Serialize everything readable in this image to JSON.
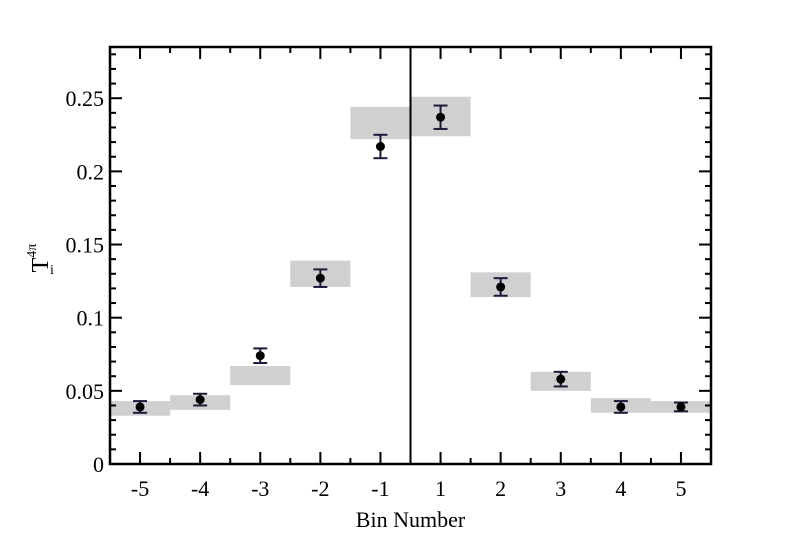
{
  "chart_data": {
    "type": "scatter",
    "title": "",
    "xlabel": "Bin Number",
    "ylabel": "T",
    "ylabel_superscript": "4π",
    "ylabel_subscript": "i",
    "categories": [
      "-5",
      "-4",
      "-3",
      "-2",
      "-1",
      "1",
      "2",
      "3",
      "4",
      "5"
    ],
    "ylim": [
      0,
      0.285
    ],
    "yticks": [
      "0",
      "0.05",
      "0.1",
      "0.15",
      "0.2",
      "0.25"
    ],
    "grid": false,
    "divider_between": [
      "-1",
      "1"
    ],
    "points": [
      {
        "x": "-5",
        "y": 0.039,
        "err": 0.004
      },
      {
        "x": "-4",
        "y": 0.044,
        "err": 0.004
      },
      {
        "x": "-3",
        "y": 0.074,
        "err": 0.005
      },
      {
        "x": "-2",
        "y": 0.127,
        "err": 0.006
      },
      {
        "x": "-1",
        "y": 0.217,
        "err": 0.008
      },
      {
        "x": "1",
        "y": 0.237,
        "err": 0.008
      },
      {
        "x": "2",
        "y": 0.121,
        "err": 0.006
      },
      {
        "x": "3",
        "y": 0.058,
        "err": 0.005
      },
      {
        "x": "4",
        "y": 0.039,
        "err": 0.004
      },
      {
        "x": "5",
        "y": 0.039,
        "err": 0.003
      }
    ],
    "bands": [
      {
        "x": "-5",
        "low": 0.033,
        "high": 0.043
      },
      {
        "x": "-4",
        "low": 0.037,
        "high": 0.047
      },
      {
        "x": "-3",
        "low": 0.054,
        "high": 0.067
      },
      {
        "x": "-2",
        "low": 0.121,
        "high": 0.139
      },
      {
        "x": "-1",
        "low": 0.222,
        "high": 0.244
      },
      {
        "x": "1",
        "low": 0.224,
        "high": 0.251
      },
      {
        "x": "2",
        "low": 0.114,
        "high": 0.131
      },
      {
        "x": "3",
        "low": 0.05,
        "high": 0.063
      },
      {
        "x": "4",
        "low": 0.035,
        "high": 0.045
      },
      {
        "x": "5",
        "low": 0.035,
        "high": 0.043
      }
    ],
    "colors": {
      "band": "#d0d0d0",
      "point": "#000000",
      "errorbar": "#1a1a3a"
    }
  }
}
